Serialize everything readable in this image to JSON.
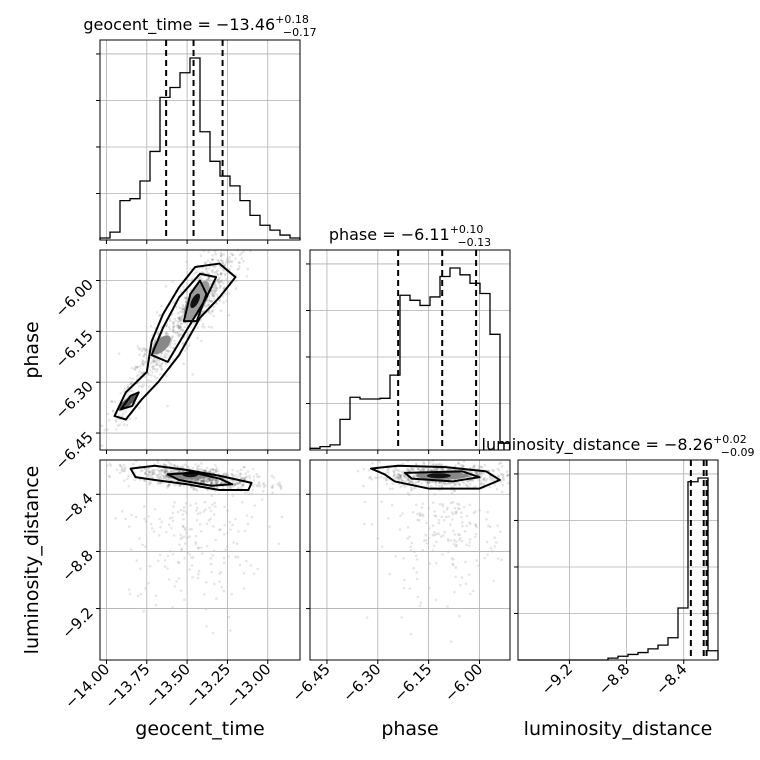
{
  "chart_data": {
    "type": "corner",
    "parameters": [
      "geocent_time",
      "phase",
      "luminosity_distance"
    ],
    "axis_labels": {
      "x": [
        "geocent_time",
        "phase",
        "luminosity_distance"
      ],
      "y": [
        "phase",
        "luminosity_distance"
      ]
    },
    "ranges": {
      "geocent_time": [
        -14.04,
        -12.8
      ],
      "phase": [
        -6.5,
        -5.91
      ],
      "luminosity_distance": [
        -9.56,
        -8.16
      ]
    },
    "ticks": {
      "geocent_time": [
        -14.0,
        -13.75,
        -13.5,
        -13.25,
        -13.0
      ],
      "phase": [
        -6.45,
        -6.3,
        -6.15,
        -6.0
      ],
      "luminosity_distance": [
        -9.2,
        -8.8,
        -8.4
      ]
    },
    "tick_labels": {
      "geocent_time": [
        "−14.00",
        "−13.75",
        "−13.50",
        "−13.25",
        "−13.00"
      ],
      "phase": [
        "−6.45",
        "−6.30",
        "−6.15",
        "−6.00"
      ],
      "luminosity_distance": [
        "−9.2",
        "−8.8",
        "−8.4"
      ]
    },
    "titles": [
      {
        "parameter": "geocent_time",
        "prefix": "geocent_time = −13.46",
        "plus": "+0.18",
        "minus": "−0.17"
      },
      {
        "parameter": "phase",
        "prefix": "phase = −6.11",
        "plus": "+0.10",
        "minus": "−0.13"
      },
      {
        "parameter": "luminosity_distance",
        "prefix": "luminosity_distance = −8.26",
        "plus": "+0.02",
        "minus": "−0.09"
      }
    ],
    "medians": [
      -13.46,
      -6.11,
      -8.26
    ],
    "quantiles": [
      [
        -13.63,
        -13.46,
        -13.28
      ],
      [
        -6.24,
        -6.11,
        -6.01
      ],
      [
        -8.35,
        -8.26,
        -8.24
      ]
    ],
    "histograms": {
      "geocent_time": {
        "bin_edges": [
          -14.04,
          -13.978,
          -13.916,
          -13.854,
          -13.792,
          -13.73,
          -13.668,
          -13.606,
          -13.544,
          -13.482,
          -13.42,
          -13.358,
          -13.296,
          -13.234,
          -13.172,
          -13.11,
          -13.048,
          -12.986,
          -12.924,
          -12.862,
          -12.8
        ],
        "counts": [
          2,
          8,
          40,
          42,
          60,
          90,
          145,
          155,
          170,
          185,
          110,
          80,
          65,
          55,
          40,
          25,
          15,
          10,
          5,
          2
        ]
      },
      "phase": {
        "bin_edges": [
          -6.5,
          -6.4705,
          -6.441,
          -6.4115,
          -6.382,
          -6.3525,
          -6.323,
          -6.2935,
          -6.264,
          -6.2345,
          -6.205,
          -6.1755,
          -6.146,
          -6.1165,
          -6.087,
          -6.0575,
          -6.028,
          -5.9985,
          -5.969,
          -5.9395,
          -5.91
        ],
        "counts": [
          5,
          10,
          15,
          90,
          155,
          150,
          150,
          152,
          220,
          455,
          440,
          425,
          450,
          510,
          535,
          515,
          490,
          460,
          340,
          20
        ]
      },
      "luminosity_distance": {
        "bin_edges": [
          -9.56,
          -9.49,
          -9.42,
          -9.35,
          -9.28,
          -9.21,
          -9.14,
          -9.07,
          -9.0,
          -8.93,
          -8.86,
          -8.79,
          -8.72,
          -8.65,
          -8.58,
          -8.51,
          -8.44,
          -8.37,
          -8.3,
          -8.23,
          -8.16
        ],
        "counts": [
          0,
          0,
          0,
          0,
          0,
          0,
          0,
          0,
          0,
          1,
          2,
          3,
          4,
          6,
          8,
          12,
          28,
          96,
          98,
          5
        ]
      }
    },
    "correlations": {
      "phase_vs_geocent_time": 0.85,
      "luminosity_distance_vs_geocent_time": 0.15,
      "luminosity_distance_vs_phase": 0.0
    },
    "grid": true
  }
}
